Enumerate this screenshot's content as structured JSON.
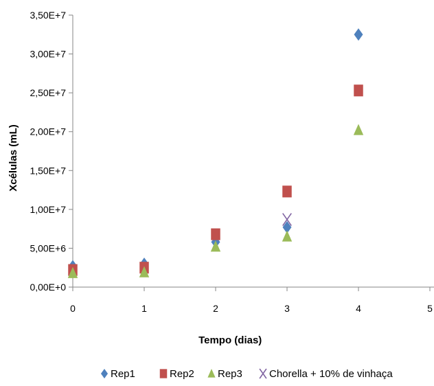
{
  "chart_data": {
    "type": "scatter",
    "title": "",
    "xlabel": "Tempo (dias)",
    "ylabel": "Xcélulas (mL)",
    "xlim": [
      0,
      5
    ],
    "ylim": [
      0,
      35000000
    ],
    "x_ticks": [
      0,
      1,
      2,
      3,
      4,
      5
    ],
    "x_tick_labels": [
      "0",
      "1",
      "2",
      "3",
      "4",
      "5"
    ],
    "y_ticks": [
      0,
      5000000,
      10000000,
      15000000,
      20000000,
      25000000,
      30000000,
      35000000
    ],
    "y_tick_labels": [
      "0,00E+0",
      "5,00E+6",
      "1,00E+7",
      "1,50E+7",
      "2,00E+7",
      "2,50E+7",
      "3,00E+7",
      "3,50E+7"
    ],
    "grid": false,
    "legend_position": "bottom",
    "series": [
      {
        "name": "Rep1",
        "marker": "diamond",
        "color": "#4F81BD",
        "x": [
          0,
          1,
          2,
          3,
          4
        ],
        "y": [
          2700000,
          3000000,
          5800000,
          7700000,
          32500000
        ]
      },
      {
        "name": "Rep2",
        "marker": "square",
        "color": "#C0504D",
        "x": [
          0,
          1,
          2,
          3,
          4
        ],
        "y": [
          2200000,
          2500000,
          6800000,
          12300000,
          25300000
        ]
      },
      {
        "name": "Rep3",
        "marker": "triangle",
        "color": "#9BBB59",
        "x": [
          0,
          1,
          2,
          3,
          4
        ],
        "y": [
          1800000,
          1900000,
          5200000,
          6500000,
          20200000
        ]
      },
      {
        "name": "Chorella + 10% de vinhaça",
        "marker": "x",
        "color": "#8064A2",
        "x": [
          3
        ],
        "y": [
          8700000
        ]
      }
    ]
  }
}
